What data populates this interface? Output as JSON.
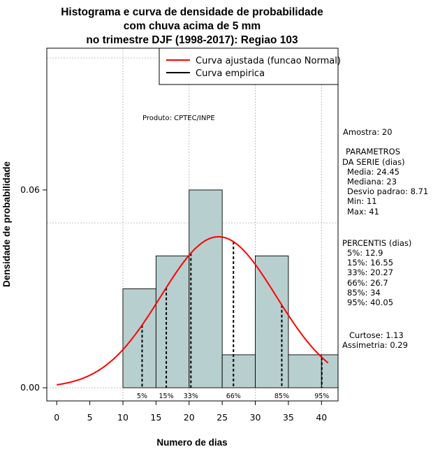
{
  "chart_data": {
    "type": "bar",
    "title_lines": [
      "Histograma e curva de densidade de probabilidade",
      "com chuva acima de 5 mm",
      "no trimestre DJF (1998-2017): Regiao 103"
    ],
    "xlabel": "Numero de dias",
    "ylabel": "Densidade de probabilidade",
    "xlim": [
      -1.5,
      42.5
    ],
    "ylim": [
      -0.004,
      0.103
    ],
    "xticks": [
      0,
      5,
      10,
      15,
      20,
      25,
      30,
      35,
      40
    ],
    "xtick_labels": [
      "0",
      "5",
      "10",
      "15",
      "20",
      "25",
      "30",
      "35",
      "40"
    ],
    "yticks": [
      0.0,
      0.06
    ],
    "ytick_labels": [
      "0.00",
      "0.06"
    ],
    "grid_y": [
      0.0,
      0.05,
      0.1
    ],
    "grid_x": [
      10,
      20,
      30,
      40
    ],
    "bins": [
      {
        "start": 10,
        "end": 15,
        "density": 0.03
      },
      {
        "start": 15,
        "end": 20,
        "density": 0.04
      },
      {
        "start": 20,
        "end": 25,
        "density": 0.06
      },
      {
        "start": 25,
        "end": 30,
        "density": 0.01
      },
      {
        "start": 30,
        "end": 35,
        "density": 0.04
      },
      {
        "start": 35,
        "end": 40,
        "density": 0.01
      },
      {
        "start": 40,
        "end": 45,
        "density": 0.01
      }
    ],
    "normal_curve": {
      "mean": 24.45,
      "sd": 8.71,
      "x_from": 0,
      "x_to": 41
    },
    "percentile_lines": [
      {
        "label": "5%",
        "x": 12.9
      },
      {
        "label": "15%",
        "x": 16.55
      },
      {
        "label": "33%",
        "x": 20.27
      },
      {
        "label": "66%",
        "x": 26.7
      },
      {
        "label": "85%",
        "x": 34
      },
      {
        "label": "95%",
        "x": 40.05
      }
    ],
    "legend": {
      "position": "top-right",
      "entries": [
        {
          "label": "Curva ajustada (funcao Normal)",
          "color": "#ff0000"
        },
        {
          "label": "Curva empirica",
          "color": "#000000"
        }
      ]
    },
    "annotation": "Produto: CPTEC/INPE",
    "colors": {
      "bar_fill": "#b8cfcf",
      "curve": "#ff0000",
      "grid": "#b0b0b0"
    }
  },
  "side_panel": {
    "amostra": "Amostra: 20",
    "params_title_1": "PARAMETROS",
    "params_title_2": "DA SERIE (dias)",
    "params": [
      "Media: 24.45",
      "Mediana: 23",
      "Desvio padrao: 8.71",
      "Min: 11",
      "Max: 41"
    ],
    "percentis_title": "PERCENTIS (dias)",
    "percentis": [
      "5%: 12.9",
      "15%: 16.55",
      "33%: 20.27",
      "66%: 26.7",
      "85%: 34",
      "95%: 40.05"
    ],
    "curtose": "Curtose: 1.13",
    "assimetria": "Assimetria: 0.29"
  }
}
